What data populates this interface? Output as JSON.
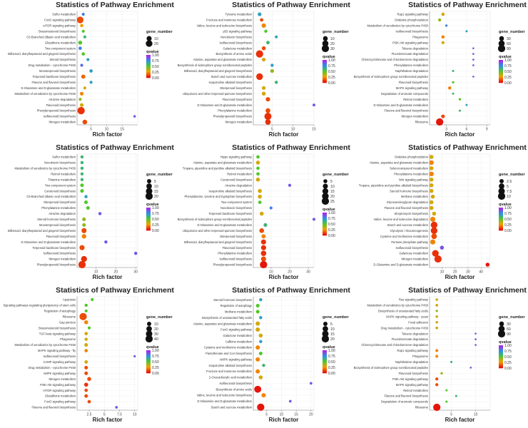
{
  "chart_data": [
    {
      "type": "scatter",
      "title": "Statistics of Pathway Enrichment",
      "xlabel": "Rich factor",
      "xticks": [
        5,
        10,
        15
      ],
      "xlim": [
        0.5,
        20
      ],
      "pathways": [
        "Sulfur metabolism",
        "FoxO signaling pathway",
        "mTOR signaling pathway",
        "Brassinosteroid biosynthesis",
        "C5-Branched dibasic acid metabolism",
        "Glutathione metabolism",
        "Two-component system",
        "Stilbenoid, diarylheptanoid and gingerol biosynthesis",
        "Steroid biosynthesis",
        "Drug metabolism - cytochrome P450",
        "Monoterpenoid biosynthesis",
        "Terpenoid backbone biosynthesis",
        "Flavone and flavonol biosynthesis",
        "D-Glutamine and D-glutamate metabolism",
        "Metabolism of xenobiotics by cytochrome P450",
        "Atrazine degradation",
        "Flavonoid biosynthesis",
        "Phenylpropanoid biosynthesis",
        "Isoflavonoid biosynthesis",
        "Nitrogen metabolism"
      ],
      "rich_factor": [
        2.5,
        1.5,
        2,
        2.5,
        3,
        1.5,
        1.5,
        2.5,
        4,
        2,
        5,
        2.5,
        5,
        3,
        2,
        1.5,
        2,
        1.8,
        19,
        3
      ],
      "gene_number": [
        2,
        20,
        3,
        2,
        2,
        5,
        3,
        3,
        2,
        2,
        3,
        6,
        2,
        2,
        4,
        2,
        4,
        25,
        1,
        8
      ],
      "qvalue": [
        0.8,
        0.1,
        0.25,
        0.5,
        0.6,
        0.5,
        0.8,
        0.5,
        0.7,
        0.85,
        0.7,
        0.15,
        0.7,
        0.3,
        0.2,
        0.4,
        0.3,
        0.05,
        0.9,
        0.1
      ],
      "size_legend": {
        "title": "gene_number",
        "values": [
          10,
          20
        ]
      },
      "color_legend": {
        "title": "qvalue",
        "ticks": [
          "1.00",
          "0.75",
          "0.50",
          "0.25",
          "0.00"
        ]
      }
    },
    {
      "type": "scatter",
      "title": "Statistics of Pathway Enrichment",
      "xlabel": "Rich factor",
      "xticks": [
        5,
        10,
        15
      ],
      "xlim": [
        0.5,
        15
      ],
      "pathways": [
        "Tyrosine metabolism",
        "Fructose and mannose metabolism",
        "Valine, leucine and isoleucine biosynthesis",
        "p53 signaling pathway",
        "Novobiocin biosynthesis",
        "Isoflavonoid biosynthesis",
        "Galactose metabolism",
        "Biosynthesis of amino acids",
        "Alanine, aspartate and glutamate metabolism",
        "Biosynthesis of siderophore group nonribosomal peptides",
        "Stilbenoid, diarylheptanoid and gingerol biosynthesis",
        "Starch and sucrose metabolism",
        "Isoquinoline alkaloid biosynthesis",
        "Diterpenoid biosynthesis",
        "Ubiquinone and other terpenoid-quinone biosynthesis",
        "Flavonoid biosynthesis",
        "D-Glutamine and D-glutamate metabolism",
        "Phenylalanine metabolism",
        "Phenylpropanoid biosynthesis",
        "Nitrogen metabolism"
      ],
      "rich_factor": [
        2,
        2.5,
        3,
        3.5,
        6,
        4,
        3,
        2,
        3,
        5,
        5,
        2,
        6,
        3,
        3,
        4,
        15,
        4,
        4,
        4
      ],
      "gene_number": [
        5,
        4,
        8,
        3,
        2,
        4,
        6,
        30,
        5,
        3,
        5,
        25,
        3,
        5,
        6,
        8,
        2,
        10,
        28,
        15
      ],
      "qvalue": [
        0.7,
        0.1,
        0.2,
        0.5,
        0.7,
        0.6,
        0.1,
        0.05,
        0.3,
        0.7,
        0.4,
        0.05,
        0.6,
        0.3,
        0.3,
        0.1,
        0.9,
        0.1,
        0.05,
        0.05
      ],
      "size_legend": {
        "title": "gene_number",
        "values": [
          10,
          20,
          30
        ]
      },
      "color_legend": {
        "title": "qvalue",
        "ticks": [
          "1.00",
          "0.75",
          "0.50",
          "0.25",
          "0.00"
        ]
      }
    },
    {
      "type": "scatter",
      "title": "Statistics of Pathway Enrichment",
      "xlabel": "Rich factor",
      "xticks": [
        3,
        6,
        9
      ],
      "xlim": [
        0.5,
        9.5
      ],
      "pathways": [
        "Rap1 signaling pathway",
        "Oxidative phosphorylation",
        "Metabolism of xenobiotics by cytochrome P450",
        "Isoflavonoid biosynthesis",
        "Phagosome",
        "PI3K-Akt signaling pathway",
        "Toluene degradation",
        "Fluorobenzoate degradation",
        "Chlorocyclohexane and chlorobenzene degradation",
        "Phenylalanine metabolism",
        "Naphthalene degradation",
        "Biosynthesis of siderophore group nonribosomal peptides",
        "Flavonoid biosynthesis",
        "MAPK signaling pathway",
        "Degradation of aromatic compounds",
        "Retinol metabolism",
        "D-Glutamine and D-glutamate metabolism",
        "Flavone and flavonol biosynthesis",
        "Nitrogen metabolism",
        "Ribosome"
      ],
      "rich_factor": [
        2.5,
        2,
        3,
        6,
        2.5,
        2.5,
        7,
        7,
        7,
        7,
        4,
        7,
        4,
        3.5,
        4,
        5,
        6,
        5,
        2.5,
        2
      ],
      "gene_number": [
        10,
        8,
        3,
        2,
        10,
        8,
        1,
        1,
        1,
        1,
        2,
        1,
        3,
        10,
        2,
        3,
        2,
        2,
        15,
        90
      ],
      "qvalue": [
        0.3,
        0.4,
        0.8,
        0.7,
        0.2,
        0.3,
        0.9,
        0.9,
        0.9,
        0.9,
        0.6,
        0.9,
        0.5,
        0.2,
        0.6,
        0.5,
        0.7,
        0.6,
        0.1,
        0.0
      ],
      "size_legend": {
        "title": "gene_number",
        "values": [
          30,
          60,
          90
        ]
      },
      "color_legend": {
        "title": "qvalue",
        "ticks": [
          "1.00",
          "0.75",
          "0.50",
          "0.25",
          "0.00"
        ]
      }
    },
    {
      "type": "scatter",
      "title": "Statistics of Pathway Enrichment",
      "xlabel": "Rich factor",
      "xticks": [
        10,
        20,
        30
      ],
      "xlim": [
        0.5,
        31
      ],
      "pathways": [
        "Sulfur metabolism",
        "Novobiocin biosynthesis",
        "Metabolism of xenobiotics by cytochrome P450",
        "Retinol metabolism",
        "Thiamine metabolism",
        "Two-component system",
        "Carotenoid biosynthesis",
        "C5-Branched dibasic acid metabolism",
        "Diterpenoid biosynthesis",
        "Phenylalanine metabolism",
        "Atrazine degradation",
        "Steroid hormone biosynthesis",
        "Monoterpenoid biosynthesis",
        "Stilbenoid, diarylheptanoid and gingerol biosynthesis",
        "Flavonoid biosynthesis",
        "D-Glutamine and D-glutamate metabolism",
        "Terpenoid backbone biosynthesis",
        "Isoflavonoid biosynthesis",
        "Nitrogen metabolism",
        "Phenylpropanoid biosynthesis"
      ],
      "rich_factor": [
        3,
        3,
        3,
        3,
        3,
        3,
        3,
        5,
        5,
        6,
        12,
        4,
        4,
        4,
        4,
        15,
        3,
        30,
        4,
        3
      ],
      "gene_number": [
        2,
        2,
        2,
        2,
        2,
        3,
        3,
        2,
        3,
        3,
        2,
        3,
        3,
        8,
        6,
        2,
        8,
        2,
        12,
        20
      ],
      "qvalue": [
        0.6,
        0.6,
        0.6,
        0.6,
        0.6,
        0.5,
        0.5,
        0.7,
        0.5,
        0.5,
        0.9,
        0.4,
        0.4,
        0.1,
        0.2,
        0.9,
        0.1,
        0.9,
        0.05,
        0.05
      ],
      "size_legend": {
        "title": "gene_number",
        "values": [
          5,
          10,
          15,
          20
        ]
      },
      "color_legend": {
        "title": "qvalue",
        "ticks": [
          "1.00",
          "0.75",
          "0.50",
          "0.25",
          "0.00"
        ]
      }
    },
    {
      "type": "scatter",
      "title": "Statistics of Pathway Enrichment",
      "xlabel": "Rich factor",
      "xticks": [
        10,
        20,
        30
      ],
      "xlim": [
        0.5,
        33
      ],
      "pathways": [
        "Hippo signaling pathway",
        "Alanine, aspartate and glutamate metabolism",
        "Tropane, piperidine and pyridine alkaloid biosynthesis",
        "Retinol metabolism",
        "Carotenoid biosynthesis",
        "Atrazine degradation",
        "Isoquinoline alkaloid biosynthesis",
        "Phenylalanine, tyrosine and tryptophan biosynthesis",
        "Two-component system",
        "Novobiocin biosynthesis",
        "Terpenoid backbone biosynthesis",
        "Biosynthesis of siderophore group nonribosomal peptides",
        "D-Glutamine and D-glutamate metabolism",
        "Ubiquinone and other terpenoid-quinone biosynthesis",
        "Diterpenoid biosynthesis",
        "Stilbenoid, diarylheptanoid and gingerol biosynthesis",
        "Flavonoid biosynthesis",
        "Phenylalanine metabolism",
        "Isoflavonoid biosynthesis",
        "Phenylpropanoid biosynthesis"
      ],
      "rich_factor": [
        3,
        3,
        3,
        3,
        3,
        20,
        4,
        4,
        4,
        10,
        5,
        33,
        7,
        5,
        6,
        6,
        6,
        6,
        6,
        6
      ],
      "gene_number": [
        3,
        5,
        3,
        3,
        5,
        2,
        5,
        5,
        3,
        2,
        5,
        2,
        4,
        8,
        6,
        10,
        10,
        12,
        10,
        25
      ],
      "qvalue": [
        0.5,
        0.3,
        0.5,
        0.5,
        0.3,
        0.9,
        0.3,
        0.3,
        0.5,
        0.8,
        0.3,
        0.9,
        0.6,
        0.1,
        0.2,
        0.05,
        0.05,
        0.05,
        0.1,
        0.0
      ],
      "size_legend": {
        "title": "gene_number",
        "values": [
          5,
          10,
          15,
          20,
          25
        ]
      },
      "color_legend": {
        "title": "qvalue",
        "ticks": [
          "1.00",
          "0.75",
          "0.50",
          "0.25",
          "0.00"
        ]
      }
    },
    {
      "type": "scatter",
      "title": "Statistics of Pathway Enrichment",
      "xlabel": "Rich factor",
      "xticks": [
        10,
        20,
        30,
        40
      ],
      "xlim": [
        0.5,
        47
      ],
      "pathways": [
        "Oxidative phosphorylation",
        "Alanine, aspartate and glutamate metabolism",
        "Selenocompound metabolism",
        "Phenylalanine metabolism",
        "Wnt signaling pathway",
        "Tropane, piperidine and pyridine alkaloid biosynthesis",
        "Steroid hormone biosynthesis",
        "Methane metabolism",
        "Glycosaminoglycan degradation",
        "Flavone and flavonol biosynthesis",
        "Streptomycin biosynthesis",
        "Valine, leucine and isoleucine degradation",
        "Starch and sucrose metabolism",
        "Glycolysis / Gluconeogenesis",
        "Cysteine and methionine metabolism",
        "Pentose phosphate pathway",
        "Isoflavonoid biosynthesis",
        "Galactose metabolism",
        "Nitrogen metabolism",
        "D-Glutamine and D-glutamate metabolism"
      ],
      "rich_factor": [
        2,
        2,
        2,
        2,
        2,
        2,
        2,
        3,
        2,
        2,
        4,
        3,
        4,
        4,
        4,
        3,
        10,
        5,
        7,
        45
      ],
      "gene_number": [
        2,
        3,
        2,
        3,
        2,
        2,
        2,
        2,
        2,
        2,
        2,
        4,
        8,
        8,
        5,
        4,
        2,
        8,
        10,
        2
      ],
      "qvalue": [
        0.3,
        0.2,
        0.3,
        0.2,
        0.3,
        0.3,
        0.3,
        0.3,
        0.3,
        0.3,
        0.3,
        0.2,
        0.05,
        0.05,
        0.1,
        0.2,
        0.9,
        0.05,
        0.05,
        0.0
      ],
      "size_legend": {
        "title": "gene_number",
        "values": [
          2.5,
          5.0,
          7.5,
          10.0
        ]
      },
      "color_legend": {
        "title": "qvalue",
        "ticks": [
          "1.00",
          "0.75",
          "0.50",
          "0.25",
          "0.00"
        ]
      }
    },
    {
      "type": "scatter",
      "title": "Statistics of Pathway Enrichment",
      "xlabel": "Rich factor",
      "xticks": [
        2.5,
        5.0,
        7.5,
        10.0
      ],
      "xlim": [
        0.5,
        10.5
      ],
      "pathways": [
        "Apoptosis",
        "Signaling pathways regulating pluripotency of stem cells",
        "Regulation of autophagy",
        "Ribosome",
        "Gap junction",
        "Brassinosteroid biosynthesis",
        "TGF-beta signaling pathway",
        "Phagosome",
        "Metabolism of xenobiotics by cytochrome P450",
        "MAPK signaling pathway - fly",
        "Isoflavonoid biosynthesis",
        "CAMP signaling pathway",
        "Drug metabolism - cytochrome P450",
        "AMPK signaling pathway",
        "Nitrogen metabolism",
        "PI3K-Akt signaling pathway",
        "mTOR signaling pathway",
        "Glutathione metabolism",
        "FoxO signaling pathway",
        "Flavone and flavonol biosynthesis"
      ],
      "rich_factor": [
        3,
        2,
        2,
        1.5,
        2,
        2.5,
        2,
        2,
        2,
        2,
        10,
        2,
        2,
        2,
        2.5,
        2,
        2,
        2,
        2.5,
        7
      ],
      "gene_number": [
        3,
        4,
        3,
        40,
        8,
        3,
        5,
        4,
        6,
        5,
        1,
        5,
        6,
        6,
        8,
        8,
        5,
        6,
        5,
        2
      ],
      "qvalue": [
        0.5,
        0.5,
        0.5,
        0.1,
        0.2,
        0.5,
        0.3,
        0.3,
        0.3,
        0.2,
        0.9,
        0.3,
        0.1,
        0.1,
        0.1,
        0.05,
        0.1,
        0.1,
        0.1,
        0.9
      ],
      "size_legend": {
        "title": "gene_number",
        "values": [
          10,
          20,
          30,
          40
        ]
      },
      "color_legend": {
        "title": "qvalue",
        "ticks": [
          "1.00",
          "0.75",
          "0.50",
          "0.25",
          "0.00"
        ]
      }
    },
    {
      "type": "scatter",
      "title": "Statistics of Pathway Enrichment",
      "xlabel": "Rich factor",
      "xticks": [
        5,
        10,
        15,
        20
      ],
      "xlim": [
        0.5,
        21
      ],
      "pathways": [
        "Steroid hormone biosynthesis",
        "Regulation of autophagy",
        "Methane metabolism",
        "Biosynthesis of unsaturated fatty acids",
        "Alanine, aspartate and glutamate metabolism",
        "FoxO signaling pathway",
        "Galactose metabolism",
        "Caffeine metabolism",
        "Cysteine and methionine metabolism",
        "Pantothenate and CoA biosynthesis",
        "AMPK signaling pathway",
        "Isoquinoline alkaloid biosynthesis",
        "Fructose and mannose metabolism",
        "2-Oxocarboxylic acid metabolism",
        "Isoflavonoid biosynthesis",
        "Biosynthesis of amino acids",
        "Valine, leucine and isoleucine biosynthesis",
        "D-Glutamine and D-glutamate metabolism",
        "Starch and sucrose metabolism"
      ],
      "rich_factor": [
        3,
        2,
        2,
        3,
        2,
        2,
        3,
        3,
        2,
        3,
        2,
        4,
        2,
        3,
        20,
        2,
        4,
        13,
        3
      ],
      "gene_number": [
        2,
        3,
        3,
        2,
        5,
        5,
        4,
        2,
        5,
        3,
        5,
        2,
        5,
        4,
        1,
        18,
        5,
        1,
        20
      ],
      "qvalue": [
        0.7,
        0.5,
        0.5,
        0.7,
        0.3,
        0.3,
        0.3,
        0.7,
        0.2,
        0.5,
        0.2,
        0.6,
        0.2,
        0.3,
        0.9,
        0.0,
        0.2,
        0.9,
        0.0
      ],
      "size_legend": {
        "title": "gene_number",
        "values": [
          5,
          10,
          15,
          20
        ]
      },
      "color_legend": {
        "title": "qvalue",
        "ticks": [
          "1.00",
          "0.75",
          "0.50",
          "0.25",
          "0.00"
        ]
      }
    },
    {
      "type": "scatter",
      "title": "Statistics of Pathway Enrichment",
      "xlabel": "Rich factor",
      "xticks": [
        5,
        10
      ],
      "xlim": [
        0.5,
        13
      ],
      "pathways": [
        "Ras signaling pathway",
        "Metabolism of xenobiotics by cytochrome P450",
        "Biosynthesis of unsaturated fatty acids",
        "MAPK signaling pathway - yeast",
        "Focal adhesion",
        "Drug metabolism - cytochrome P450",
        "Toluene degradation",
        "Fluorobenzoate degradation",
        "Chlorocyclohexane and chlorobenzene degradation",
        "Rap1 signaling pathway",
        "Phagosome",
        "Naphthalene degradation",
        "Biosynthesis of siderophore group nonribosomal peptides",
        "Flavonoid biosynthesis",
        "PI3K-Akt signaling pathway",
        "MAPK signaling pathway",
        "Retinol metabolism",
        "Flavone and flavonol biosynthesis",
        "Degradation of aromatic compounds",
        "Ribosome"
      ],
      "rich_factor": [
        2,
        2,
        2,
        2,
        2,
        2,
        10,
        10,
        10,
        2,
        2,
        5,
        9,
        3,
        2,
        2,
        4,
        6,
        4,
        2
      ],
      "gene_number": [
        4,
        5,
        3,
        4,
        4,
        5,
        1,
        1,
        1,
        6,
        6,
        2,
        1,
        3,
        8,
        8,
        2,
        2,
        2,
        90
      ],
      "qvalue": [
        0.3,
        0.3,
        0.4,
        0.3,
        0.3,
        0.3,
        0.9,
        0.9,
        0.9,
        0.2,
        0.2,
        0.6,
        0.9,
        0.4,
        0.1,
        0.1,
        0.5,
        0.6,
        0.5,
        0.0
      ],
      "size_legend": {
        "title": "gene_number",
        "values": [
          30,
          60,
          90
        ]
      },
      "color_legend": {
        "title": "qvalue",
        "ticks": [
          "1.00",
          "0.75",
          "0.50",
          "0.25",
          "0.00"
        ]
      }
    }
  ]
}
